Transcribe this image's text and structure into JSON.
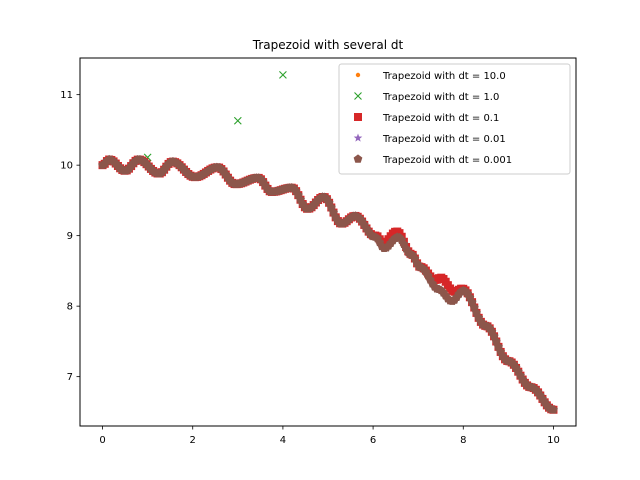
{
  "chart_data": {
    "type": "scatter",
    "title": "Trapezoid with several dt",
    "xlabel": "",
    "ylabel": "",
    "xlim": [
      -0.5,
      10.5
    ],
    "ylim": [
      6.3,
      11.52
    ],
    "xticks": [
      0,
      2,
      4,
      6,
      8,
      10
    ],
    "yticks": [
      7,
      8,
      9,
      10,
      11
    ],
    "xtick_labels": [
      "0",
      "2",
      "4",
      "6",
      "8",
      "10"
    ],
    "ytick_labels": [
      "7",
      "8",
      "9",
      "10",
      "11"
    ],
    "grid": false,
    "legend_position": "top-right",
    "series": [
      {
        "name": "Trapezoid with dt = 10.0",
        "marker": "circle",
        "color": "#ff7f0e",
        "x": [
          0
        ],
        "y": [
          10.0
        ]
      },
      {
        "name": "Trapezoid with dt = 1.0",
        "marker": "x",
        "color": "#2ca02c",
        "x": [
          0,
          1,
          3,
          4
        ],
        "y": [
          10.0,
          10.11,
          10.63,
          11.28
        ]
      },
      {
        "name": "Trapezoid with dt = 0.1",
        "marker": "square",
        "color": "#d62728",
        "step": 0.1,
        "x_range": [
          0,
          10
        ],
        "curve": "oscillating_decay",
        "bumps": [
          {
            "x": 6.4,
            "dy": 0.1
          },
          {
            "x": 7.6,
            "dy": 0.2
          }
        ]
      },
      {
        "name": "Trapezoid with dt = 0.01",
        "marker": "star",
        "color": "#9467bd",
        "step": 0.01,
        "x_range": [
          0,
          10
        ],
        "curve": "oscillating_decay"
      },
      {
        "name": "Trapezoid with dt = 0.001",
        "marker": "pentagon",
        "color": "#8c564b",
        "step": 0.001,
        "x_range": [
          0,
          10
        ],
        "curve": "oscillating_decay"
      }
    ],
    "reference_curve": {
      "description_points_x": [
        0,
        0.15,
        0.5,
        0.8,
        1.25,
        1.55,
        2.05,
        2.55,
        2.95,
        3.45,
        3.75,
        4.2,
        4.55,
        4.9,
        5.3,
        5.6,
        6.05,
        6.25,
        6.55,
        6.85,
        7.05,
        7.45,
        7.75,
        8.0,
        8.5,
        9.0,
        9.5,
        10.0
      ],
      "description_points_y": [
        10.0,
        10.08,
        9.92,
        10.08,
        9.88,
        10.05,
        9.83,
        9.97,
        9.73,
        9.82,
        9.62,
        9.68,
        9.38,
        9.55,
        9.17,
        9.28,
        8.98,
        8.82,
        8.98,
        8.73,
        8.55,
        8.24,
        8.07,
        8.22,
        7.72,
        7.22,
        6.85,
        6.53
      ]
    }
  }
}
